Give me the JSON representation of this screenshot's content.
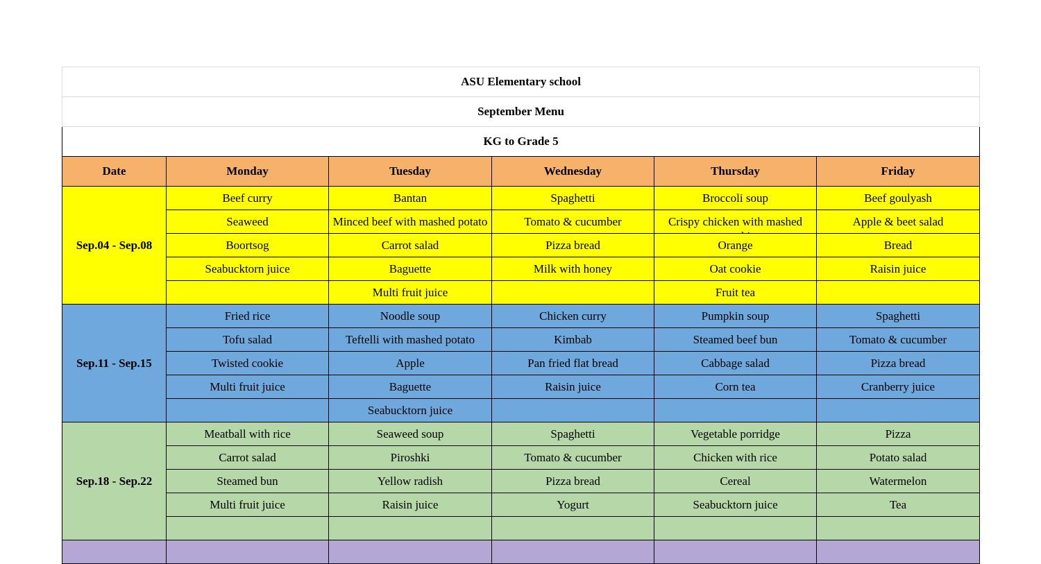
{
  "school": "ASU Elementary school",
  "menu_title": "September Menu",
  "grades": "KG to Grade 5",
  "headers": [
    "Date",
    "Monday",
    "Tuesday",
    "Wednesday",
    "Thursday",
    "Friday"
  ],
  "colors": {
    "header": "#f6b26b",
    "week1": "#ffff00",
    "week2": "#6fa8dc",
    "week3": "#b6d7a8",
    "week4": "#b4a7d6"
  },
  "weeks": [
    {
      "date": "Sep.04 - Sep.08",
      "rows": [
        [
          "Beef curry",
          "Bantan",
          "Spaghetti",
          "Broccoli soup",
          "Beef goulyash"
        ],
        [
          "Seaweed",
          "Minced beef with mashed potato",
          "Tomato & cucumber",
          "Crispy chicken with mashed pumpkin",
          "Apple & beet salad"
        ],
        [
          "Boortsog",
          "Carrot salad",
          "Pizza bread",
          "Orange",
          "Bread"
        ],
        [
          "Seabucktorn juice",
          "Baguette",
          "Milk with honey",
          "Oat cookie",
          "Raisin juice"
        ],
        [
          "",
          "Multi fruit juice",
          "",
          "Fruit tea",
          ""
        ]
      ]
    },
    {
      "date": "Sep.11 - Sep.15",
      "rows": [
        [
          "Fried rice",
          "Noodle soup",
          "Chicken curry",
          "Pumpkin soup",
          "Spaghetti"
        ],
        [
          "Tofu salad",
          "Teftelli with mashed potato",
          "Kimbab",
          "Steamed beef bun",
          "Tomato & cucumber"
        ],
        [
          "Twisted cookie",
          "Apple",
          "Pan fried flat bread",
          "Cabbage salad",
          "Pizza bread"
        ],
        [
          "Multi fruit juice",
          "Baguette",
          "Raisin juice",
          "Corn tea",
          "Cranberry juice"
        ],
        [
          "",
          "Seabucktorn juice",
          "",
          "",
          ""
        ]
      ]
    },
    {
      "date": "Sep.18 - Sep.22",
      "rows": [
        [
          "Meatball with rice",
          "Seaweed soup",
          "Spaghetti",
          "Vegetable porridge",
          "Pizza"
        ],
        [
          "Carrot salad",
          "Piroshki",
          "Tomato & cucumber",
          "Chicken with rice",
          "Potato salad"
        ],
        [
          "Steamed bun",
          "Yellow radish",
          "Pizza bread",
          "Cereal",
          "Watermelon"
        ],
        [
          "Multi fruit juice",
          "Raisin juice",
          "Yogurt",
          "Seabucktorn juice",
          "Tea"
        ],
        [
          "",
          "",
          "",
          "",
          ""
        ]
      ]
    },
    {
      "date": "",
      "rows": [
        [
          "",
          "",
          "",
          "",
          ""
        ]
      ]
    }
  ]
}
